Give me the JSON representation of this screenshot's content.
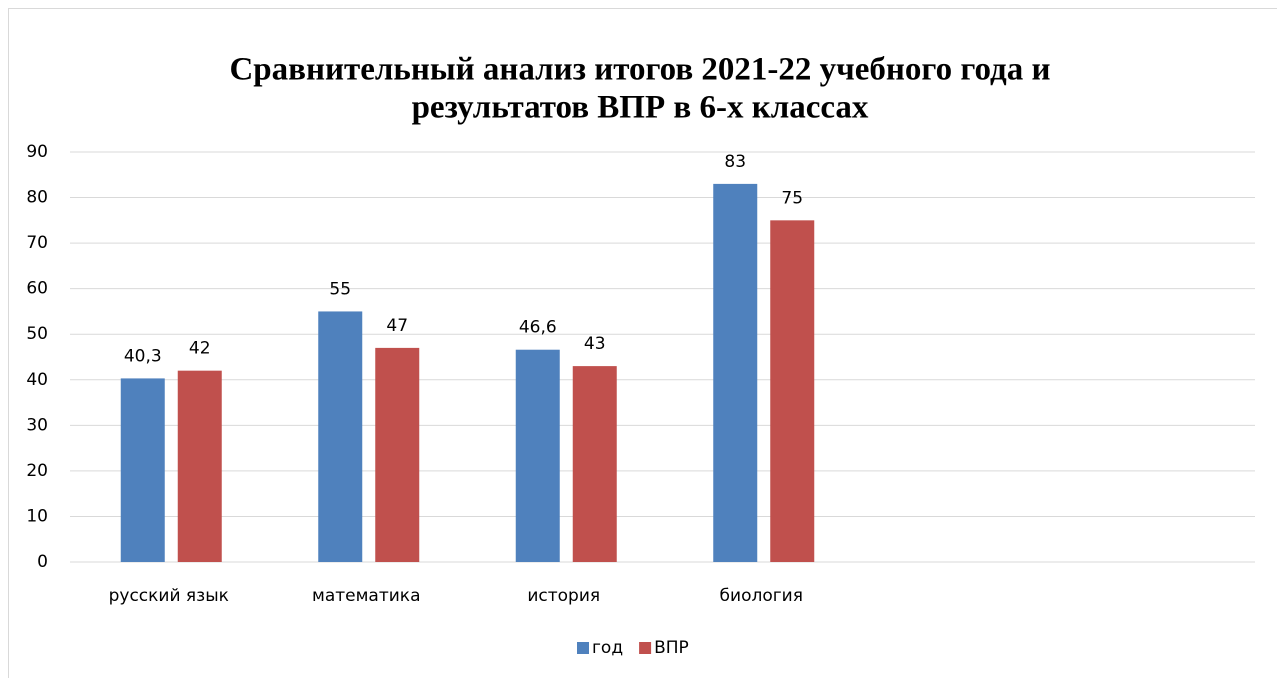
{
  "chart_data": {
    "type": "bar",
    "title": [
      "Сравнительный анализ итогов 2021-22 учебного года и",
      "результатов ВПР в 6-х классах"
    ],
    "categories": [
      "русский язык",
      "математика",
      "история",
      "биология",
      null,
      null
    ],
    "series": [
      {
        "name": "год",
        "color": "#4f81bd",
        "values": [
          40.3,
          55,
          46.6,
          83,
          null,
          null
        ],
        "value_labels": [
          "40,3",
          "55",
          "46,6",
          "83",
          null,
          null
        ]
      },
      {
        "name": "ВПР",
        "color": "#c0504d",
        "values": [
          42,
          47,
          43,
          75,
          null,
          null
        ],
        "value_labels": [
          "42",
          "47",
          "43",
          "75",
          null,
          null
        ]
      }
    ],
    "ylim": [
      0,
      90
    ],
    "yticks": [
      0,
      10,
      20,
      30,
      40,
      50,
      60,
      70,
      80,
      90
    ],
    "grid": true,
    "legend": "bottom"
  }
}
